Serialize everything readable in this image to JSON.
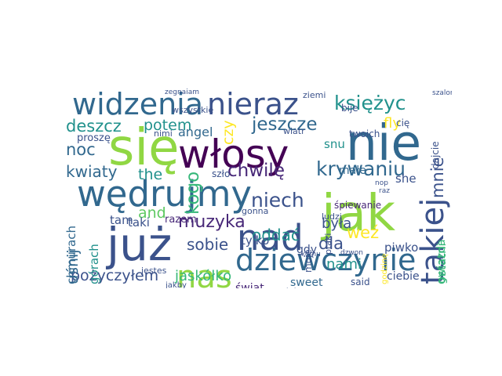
{
  "wordcloud": {
    "palette": [
      "#3b528b",
      "#21918c",
      "#5ec962",
      "#fde725",
      "#440154",
      "#31688e",
      "#35b779",
      "#90d743",
      "#482878"
    ],
    "words": [
      {
        "text": "się",
        "weight": 1.0,
        "vertical": false,
        "color": "#90d743"
      },
      {
        "text": "nie",
        "weight": 0.98,
        "vertical": false,
        "color": "#31688e"
      },
      {
        "text": "jak",
        "weight": 1.0,
        "vertical": false,
        "color": "#90d743"
      },
      {
        "text": "już",
        "weight": 0.9,
        "vertical": false,
        "color": "#3b528b"
      },
      {
        "text": "włosy",
        "weight": 0.75,
        "vertical": false,
        "color": "#440154"
      },
      {
        "text": "nad",
        "weight": 0.68,
        "vertical": false,
        "color": "#3b528b"
      },
      {
        "text": "wędrujmy",
        "weight": 0.68,
        "vertical": false,
        "color": "#31688e"
      },
      {
        "text": "widzenia",
        "weight": 0.55,
        "vertical": false,
        "color": "#31688e"
      },
      {
        "text": "nieraz",
        "weight": 0.55,
        "vertical": false,
        "color": "#3b528b"
      },
      {
        "text": "nas",
        "weight": 0.58,
        "vertical": false,
        "color": "#90d743"
      },
      {
        "text": "dziewczynie",
        "weight": 0.55,
        "vertical": false,
        "color": "#31688e"
      },
      {
        "text": "takiej",
        "weight": 0.58,
        "vertical": true,
        "color": "#3b528b"
      },
      {
        "text": "księżyc",
        "weight": 0.32,
        "vertical": false,
        "color": "#21918c"
      },
      {
        "text": "jeszcze",
        "weight": 0.3,
        "vertical": false,
        "color": "#31688e"
      },
      {
        "text": "krywaniu",
        "weight": 0.33,
        "vertical": false,
        "color": "#31688e"
      },
      {
        "text": "chwilę",
        "weight": 0.3,
        "vertical": false,
        "color": "#482878"
      },
      {
        "text": "niech",
        "weight": 0.32,
        "vertical": false,
        "color": "#3b528b"
      },
      {
        "text": "mnie",
        "weight": 0.26,
        "vertical": true,
        "color": "#3b528b"
      },
      {
        "text": "kogo",
        "weight": 0.3,
        "vertical": true,
        "color": "#35b779"
      },
      {
        "text": "deszcz",
        "weight": 0.25,
        "vertical": false,
        "color": "#21918c"
      },
      {
        "text": "potem",
        "weight": 0.22,
        "vertical": false,
        "color": "#21918c"
      },
      {
        "text": "czy",
        "weight": 0.22,
        "vertical": true,
        "color": "#fde725"
      },
      {
        "text": "noc",
        "weight": 0.25,
        "vertical": false,
        "color": "#31688e"
      },
      {
        "text": "kwiaty",
        "weight": 0.24,
        "vertical": false,
        "color": "#31688e"
      },
      {
        "text": "the",
        "weight": 0.22,
        "vertical": false,
        "color": "#21918c"
      },
      {
        "text": "muzyka",
        "weight": 0.27,
        "vertical": false,
        "color": "#482878"
      },
      {
        "text": "and",
        "weight": 0.22,
        "vertical": false,
        "color": "#5ec962"
      },
      {
        "text": "oddać",
        "weight": 0.24,
        "vertical": false,
        "color": "#21918c"
      },
      {
        "text": "dla",
        "weight": 0.25,
        "vertical": false,
        "color": "#3b528b"
      },
      {
        "text": "nami",
        "weight": 0.2,
        "vertical": false,
        "color": "#21918c"
      },
      {
        "text": "była",
        "weight": 0.2,
        "vertical": false,
        "color": "#3b528b"
      },
      {
        "text": "weź",
        "weight": 0.25,
        "vertical": false,
        "color": "#fde725"
      },
      {
        "text": "sobie",
        "weight": 0.24,
        "vertical": false,
        "color": "#3b528b"
      },
      {
        "text": "pożyczyłem",
        "weight": 0.22,
        "vertical": false,
        "color": "#3b528b"
      },
      {
        "text": "jaskółko",
        "weight": 0.2,
        "vertical": false,
        "color": "#35b779"
      },
      {
        "text": "uśnij",
        "weight": 0.22,
        "vertical": true,
        "color": "#31688e"
      },
      {
        "text": "fly",
        "weight": 0.2,
        "vertical": false,
        "color": "#fde725"
      },
      {
        "text": "angel",
        "weight": 0.17,
        "vertical": false,
        "color": "#31688e"
      },
      {
        "text": "snu",
        "weight": 0.15,
        "vertical": false,
        "color": "#21918c"
      },
      {
        "text": "małe",
        "weight": 0.14,
        "vertical": false,
        "color": "#31688e"
      },
      {
        "text": "she",
        "weight": 0.15,
        "vertical": false,
        "color": "#3b528b"
      },
      {
        "text": "ostatni",
        "weight": 0.15,
        "vertical": true,
        "color": "#35b779"
      },
      {
        "text": "tam",
        "weight": 0.15,
        "vertical": false,
        "color": "#3b528b"
      },
      {
        "text": "taki",
        "weight": 0.15,
        "vertical": false,
        "color": "#3b528b"
      },
      {
        "text": "tylko",
        "weight": 0.15,
        "vertical": false,
        "color": "#3b528b"
      },
      {
        "text": "gdy",
        "weight": 0.14,
        "vertical": false,
        "color": "#3b528b"
      },
      {
        "text": "piwko",
        "weight": 0.15,
        "vertical": false,
        "color": "#3b528b"
      },
      {
        "text": "gwiazda",
        "weight": 0.13,
        "vertical": true,
        "color": "#35b779"
      },
      {
        "text": "chmurach",
        "weight": 0.15,
        "vertical": true,
        "color": "#31688e"
      },
      {
        "text": "górach",
        "weight": 0.15,
        "vertical": true,
        "color": "#21918c"
      },
      {
        "text": "razem",
        "weight": 0.12,
        "vertical": false,
        "color": "#482878"
      },
      {
        "text": "świat",
        "weight": 0.14,
        "vertical": false,
        "color": "#482878"
      },
      {
        "text": "sweet",
        "weight": 0.14,
        "vertical": false,
        "color": "#31688e"
      },
      {
        "text": "ciebie",
        "weight": 0.14,
        "vertical": false,
        "color": "#3b528b"
      },
      {
        "text": "proszę",
        "weight": 0.12,
        "vertical": false,
        "color": "#3b528b"
      },
      {
        "text": "wszystkie",
        "weight": 0.08,
        "vertical": false,
        "color": "#3b528b"
      },
      {
        "text": "nimi",
        "weight": 0.08,
        "vertical": false,
        "color": "#3b528b"
      },
      {
        "text": "wiatr",
        "weight": 0.08,
        "vertical": false,
        "color": "#3b528b"
      },
      {
        "text": "bije",
        "weight": 0.1,
        "vertical": false,
        "color": "#3b528b"
      },
      {
        "text": "cię",
        "weight": 0.1,
        "vertical": false,
        "color": "#3b528b"
      },
      {
        "text": "dajcie",
        "weight": 0.1,
        "vertical": true,
        "color": "#3b528b"
      },
      {
        "text": "twoich",
        "weight": 0.1,
        "vertical": false,
        "color": "#3b528b"
      },
      {
        "text": "szło",
        "weight": 0.1,
        "vertical": false,
        "color": "#3b528b"
      },
      {
        "text": "śpiewanie",
        "weight": 0.1,
        "vertical": false,
        "color": "#482878"
      },
      {
        "text": "cichą",
        "weight": 0.1,
        "vertical": false,
        "color": "#3b528b"
      },
      {
        "text": "moje",
        "weight": 0.1,
        "vertical": true,
        "color": "#3b528b"
      },
      {
        "text": "ptaki",
        "weight": 0.08,
        "vertical": true,
        "color": "#3b528b"
      },
      {
        "text": "ludzi",
        "weight": 0.08,
        "vertical": false,
        "color": "#3b528b"
      },
      {
        "text": "gonna",
        "weight": 0.08,
        "vertical": false,
        "color": "#3b528b"
      },
      {
        "text": "jestes",
        "weight": 0.08,
        "vertical": false,
        "color": "#3b528b"
      },
      {
        "text": "said",
        "weight": 0.1,
        "vertical": false,
        "color": "#3b528b"
      },
      {
        "text": "ziemi",
        "weight": 0.08,
        "vertical": false,
        "color": "#3b528b"
      },
      {
        "text": "jakby",
        "weight": 0.07,
        "vertical": false,
        "color": "#3b528b"
      },
      {
        "text": "komu",
        "weight": 0.06,
        "vertical": false,
        "color": "#3b528b"
      },
      {
        "text": "dzwon",
        "weight": 0.06,
        "vertical": false,
        "color": "#3b528b"
      },
      {
        "text": "raz",
        "weight": 0.06,
        "vertical": false,
        "color": "#3b528b"
      },
      {
        "text": "nop",
        "weight": 0.06,
        "vertical": false,
        "color": "#3b528b"
      },
      {
        "text": "godzinę",
        "weight": 0.07,
        "vertical": true,
        "color": "#fde725"
      },
      {
        "text": "szaloną",
        "weight": 0.06,
        "vertical": false,
        "color": "#3b528b"
      },
      {
        "text": "zegnaiam",
        "weight": 0.05,
        "vertical": false,
        "color": "#3b528b"
      }
    ]
  }
}
